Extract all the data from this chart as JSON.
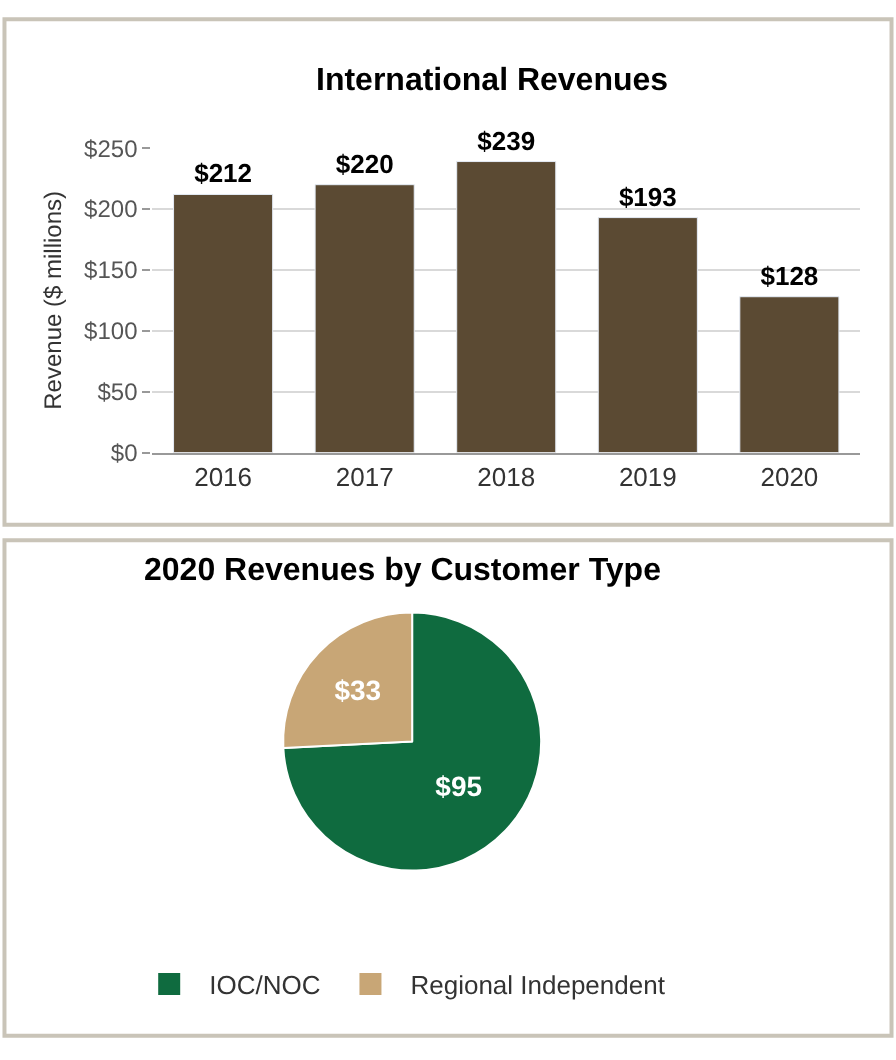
{
  "chart_data": [
    {
      "type": "bar",
      "title": "International Revenues",
      "ylabel": "Revenue ($ millions)",
      "categories": [
        "2016",
        "2017",
        "2018",
        "2019",
        "2020"
      ],
      "series": [
        {
          "color": "#5b4a33",
          "values": [
            212,
            220,
            239,
            193,
            128
          ],
          "value_labels": [
            "$212",
            "$220",
            "$239",
            "$193",
            "$128"
          ]
        }
      ],
      "ylim": [
        0,
        250
      ],
      "yticks": [
        {
          "value": 0,
          "label": "$0"
        },
        {
          "value": 50,
          "label": "$50"
        },
        {
          "value": 100,
          "label": "$100"
        },
        {
          "value": 150,
          "label": "$150"
        },
        {
          "value": 200,
          "label": "$200"
        },
        {
          "value": 250,
          "label": "$250"
        }
      ],
      "grid": "y"
    },
    {
      "type": "pie",
      "title": "2020 Revenues by Customer Type",
      "categories": [
        "IOC/NOC",
        "Regional Independent"
      ],
      "values": [
        95,
        33
      ],
      "value_labels": [
        "$95",
        "$33"
      ],
      "colors": [
        "#0f6b3f",
        "#c8a676"
      ],
      "legend": "bottom"
    }
  ]
}
